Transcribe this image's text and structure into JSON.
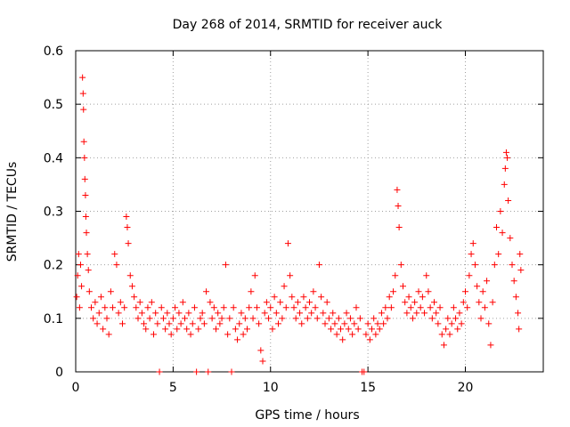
{
  "chart_data": {
    "type": "scatter",
    "title": "Day 268 of 2014, SRMTID for receiver auck",
    "xlabel": "GPS time / hours",
    "ylabel": "SRMTID / TECUs",
    "xlim": [
      0,
      24
    ],
    "ylim": [
      0,
      0.6
    ],
    "xticks": [
      0,
      5,
      10,
      15,
      20
    ],
    "xtick_labels": [
      "0",
      "5",
      "10",
      "15",
      "20"
    ],
    "yticks": [
      0,
      0.1,
      0.2,
      0.3,
      0.4,
      0.5,
      0.6
    ],
    "ytick_labels": [
      "0",
      "0.1",
      "0.2",
      "0.3",
      "0.4",
      "0.5",
      "0.6"
    ],
    "grid": true,
    "marker": "+",
    "color": "#ff0000",
    "series": [
      {
        "name": "SRMTID",
        "points": [
          [
            0.05,
            0.14
          ],
          [
            0.1,
            0.18
          ],
          [
            0.15,
            0.22
          ],
          [
            0.2,
            0.12
          ],
          [
            0.25,
            0.2
          ],
          [
            0.3,
            0.16
          ],
          [
            0.35,
            0.55
          ],
          [
            0.38,
            0.52
          ],
          [
            0.4,
            0.49
          ],
          [
            0.42,
            0.43
          ],
          [
            0.45,
            0.4
          ],
          [
            0.47,
            0.36
          ],
          [
            0.5,
            0.33
          ],
          [
            0.52,
            0.29
          ],
          [
            0.55,
            0.26
          ],
          [
            0.6,
            0.22
          ],
          [
            0.65,
            0.19
          ],
          [
            0.7,
            0.15
          ],
          [
            0.8,
            0.12
          ],
          [
            0.9,
            0.1
          ],
          [
            1.0,
            0.13
          ],
          [
            1.1,
            0.09
          ],
          [
            1.2,
            0.11
          ],
          [
            1.3,
            0.14
          ],
          [
            1.4,
            0.08
          ],
          [
            1.5,
            0.12
          ],
          [
            1.6,
            0.1
          ],
          [
            1.7,
            0.07
          ],
          [
            1.8,
            0.15
          ],
          [
            1.9,
            0.12
          ],
          [
            2.0,
            0.22
          ],
          [
            2.1,
            0.2
          ],
          [
            2.2,
            0.11
          ],
          [
            2.3,
            0.13
          ],
          [
            2.4,
            0.09
          ],
          [
            2.5,
            0.12
          ],
          [
            2.6,
            0.29
          ],
          [
            2.65,
            0.27
          ],
          [
            2.7,
            0.24
          ],
          [
            2.8,
            0.18
          ],
          [
            2.9,
            0.16
          ],
          [
            3.0,
            0.14
          ],
          [
            3.1,
            0.12
          ],
          [
            3.2,
            0.1
          ],
          [
            3.3,
            0.13
          ],
          [
            3.4,
            0.11
          ],
          [
            3.5,
            0.09
          ],
          [
            3.6,
            0.08
          ],
          [
            3.7,
            0.12
          ],
          [
            3.8,
            0.1
          ],
          [
            3.9,
            0.13
          ],
          [
            4.0,
            0.07
          ],
          [
            4.1,
            0.11
          ],
          [
            4.2,
            0.09
          ],
          [
            4.3,
            0.0
          ],
          [
            4.4,
            0.12
          ],
          [
            4.5,
            0.1
          ],
          [
            4.6,
            0.08
          ],
          [
            4.7,
            0.11
          ],
          [
            4.8,
            0.09
          ],
          [
            4.9,
            0.07
          ],
          [
            5.0,
            0.1
          ],
          [
            5.1,
            0.12
          ],
          [
            5.2,
            0.08
          ],
          [
            5.3,
            0.11
          ],
          [
            5.4,
            0.09
          ],
          [
            5.5,
            0.13
          ],
          [
            5.6,
            0.1
          ],
          [
            5.7,
            0.08
          ],
          [
            5.8,
            0.11
          ],
          [
            5.9,
            0.07
          ],
          [
            6.0,
            0.09
          ],
          [
            6.1,
            0.12
          ],
          [
            6.2,
            0.0
          ],
          [
            6.3,
            0.08
          ],
          [
            6.4,
            0.1
          ],
          [
            6.5,
            0.11
          ],
          [
            6.6,
            0.09
          ],
          [
            6.7,
            0.15
          ],
          [
            6.8,
            0.0
          ],
          [
            6.9,
            0.13
          ],
          [
            7.0,
            0.1
          ],
          [
            7.1,
            0.12
          ],
          [
            7.2,
            0.08
          ],
          [
            7.3,
            0.11
          ],
          [
            7.4,
            0.09
          ],
          [
            7.5,
            0.1
          ],
          [
            7.6,
            0.12
          ],
          [
            7.7,
            0.2
          ],
          [
            7.8,
            0.07
          ],
          [
            7.9,
            0.1
          ],
          [
            8.0,
            0.0
          ],
          [
            8.1,
            0.12
          ],
          [
            8.2,
            0.08
          ],
          [
            8.3,
            0.06
          ],
          [
            8.4,
            0.09
          ],
          [
            8.5,
            0.11
          ],
          [
            8.6,
            0.07
          ],
          [
            8.7,
            0.1
          ],
          [
            8.8,
            0.08
          ],
          [
            8.9,
            0.12
          ],
          [
            9.0,
            0.15
          ],
          [
            9.1,
            0.1
          ],
          [
            9.2,
            0.18
          ],
          [
            9.3,
            0.12
          ],
          [
            9.4,
            0.09
          ],
          [
            9.5,
            0.04
          ],
          [
            9.6,
            0.02
          ],
          [
            9.7,
            0.11
          ],
          [
            9.8,
            0.13
          ],
          [
            9.9,
            0.1
          ],
          [
            10.0,
            0.12
          ],
          [
            10.1,
            0.08
          ],
          [
            10.2,
            0.14
          ],
          [
            10.3,
            0.11
          ],
          [
            10.4,
            0.09
          ],
          [
            10.5,
            0.13
          ],
          [
            10.6,
            0.1
          ],
          [
            10.7,
            0.16
          ],
          [
            10.8,
            0.12
          ],
          [
            10.9,
            0.24
          ],
          [
            11.0,
            0.18
          ],
          [
            11.1,
            0.14
          ],
          [
            11.2,
            0.12
          ],
          [
            11.3,
            0.1
          ],
          [
            11.4,
            0.13
          ],
          [
            11.5,
            0.11
          ],
          [
            11.6,
            0.09
          ],
          [
            11.7,
            0.14
          ],
          [
            11.8,
            0.12
          ],
          [
            11.9,
            0.1
          ],
          [
            12.0,
            0.13
          ],
          [
            12.1,
            0.11
          ],
          [
            12.2,
            0.15
          ],
          [
            12.3,
            0.12
          ],
          [
            12.4,
            0.1
          ],
          [
            12.5,
            0.2
          ],
          [
            12.6,
            0.14
          ],
          [
            12.7,
            0.11
          ],
          [
            12.8,
            0.09
          ],
          [
            12.9,
            0.13
          ],
          [
            13.0,
            0.1
          ],
          [
            13.1,
            0.08
          ],
          [
            13.2,
            0.11
          ],
          [
            13.3,
            0.09
          ],
          [
            13.4,
            0.07
          ],
          [
            13.5,
            0.1
          ],
          [
            13.6,
            0.08
          ],
          [
            13.7,
            0.06
          ],
          [
            13.8,
            0.09
          ],
          [
            13.9,
            0.11
          ],
          [
            14.0,
            0.08
          ],
          [
            14.1,
            0.1
          ],
          [
            14.2,
            0.07
          ],
          [
            14.3,
            0.09
          ],
          [
            14.4,
            0.12
          ],
          [
            14.5,
            0.08
          ],
          [
            14.6,
            0.1
          ],
          [
            14.7,
            0.0
          ],
          [
            14.8,
            0.0
          ],
          [
            14.9,
            0.07
          ],
          [
            15.0,
            0.09
          ],
          [
            15.1,
            0.06
          ],
          [
            15.2,
            0.08
          ],
          [
            15.3,
            0.1
          ],
          [
            15.4,
            0.07
          ],
          [
            15.5,
            0.09
          ],
          [
            15.6,
            0.08
          ],
          [
            15.7,
            0.11
          ],
          [
            15.8,
            0.09
          ],
          [
            15.9,
            0.12
          ],
          [
            16.0,
            0.1
          ],
          [
            16.1,
            0.14
          ],
          [
            16.2,
            0.12
          ],
          [
            16.3,
            0.15
          ],
          [
            16.4,
            0.18
          ],
          [
            16.5,
            0.34
          ],
          [
            16.55,
            0.31
          ],
          [
            16.6,
            0.27
          ],
          [
            16.7,
            0.2
          ],
          [
            16.8,
            0.16
          ],
          [
            16.9,
            0.13
          ],
          [
            17.0,
            0.11
          ],
          [
            17.1,
            0.14
          ],
          [
            17.2,
            0.12
          ],
          [
            17.3,
            0.1
          ],
          [
            17.4,
            0.13
          ],
          [
            17.5,
            0.11
          ],
          [
            17.6,
            0.15
          ],
          [
            17.7,
            0.12
          ],
          [
            17.8,
            0.14
          ],
          [
            17.9,
            0.11
          ],
          [
            18.0,
            0.18
          ],
          [
            18.1,
            0.15
          ],
          [
            18.2,
            0.12
          ],
          [
            18.3,
            0.1
          ],
          [
            18.4,
            0.13
          ],
          [
            18.5,
            0.11
          ],
          [
            18.6,
            0.09
          ],
          [
            18.7,
            0.12
          ],
          [
            18.8,
            0.07
          ],
          [
            18.9,
            0.05
          ],
          [
            19.0,
            0.08
          ],
          [
            19.1,
            0.1
          ],
          [
            19.2,
            0.07
          ],
          [
            19.3,
            0.09
          ],
          [
            19.4,
            0.12
          ],
          [
            19.5,
            0.1
          ],
          [
            19.6,
            0.08
          ],
          [
            19.7,
            0.11
          ],
          [
            19.8,
            0.09
          ],
          [
            19.9,
            0.13
          ],
          [
            20.0,
            0.15
          ],
          [
            20.1,
            0.12
          ],
          [
            20.2,
            0.18
          ],
          [
            20.3,
            0.22
          ],
          [
            20.4,
            0.24
          ],
          [
            20.5,
            0.2
          ],
          [
            20.6,
            0.16
          ],
          [
            20.7,
            0.13
          ],
          [
            20.8,
            0.1
          ],
          [
            20.9,
            0.15
          ],
          [
            21.0,
            0.12
          ],
          [
            21.1,
            0.17
          ],
          [
            21.2,
            0.09
          ],
          [
            21.3,
            0.05
          ],
          [
            21.4,
            0.13
          ],
          [
            21.5,
            0.2
          ],
          [
            21.6,
            0.27
          ],
          [
            21.7,
            0.22
          ],
          [
            21.8,
            0.3
          ],
          [
            21.9,
            0.26
          ],
          [
            22.0,
            0.35
          ],
          [
            22.05,
            0.38
          ],
          [
            22.1,
            0.41
          ],
          [
            22.15,
            0.4
          ],
          [
            22.2,
            0.32
          ],
          [
            22.3,
            0.25
          ],
          [
            22.4,
            0.2
          ],
          [
            22.5,
            0.17
          ],
          [
            22.6,
            0.14
          ],
          [
            22.7,
            0.11
          ],
          [
            22.75,
            0.08
          ],
          [
            22.8,
            0.22
          ],
          [
            22.85,
            0.19
          ]
        ]
      }
    ]
  }
}
